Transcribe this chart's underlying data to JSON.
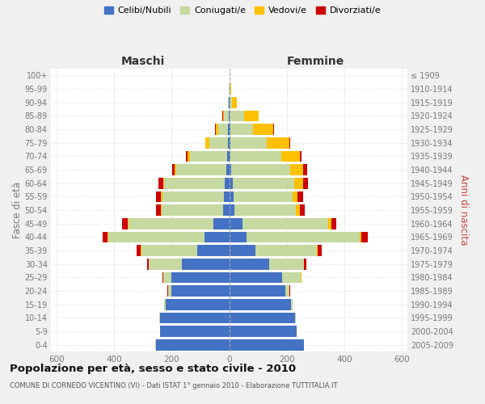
{
  "age_groups": [
    "0-4",
    "5-9",
    "10-14",
    "15-19",
    "20-24",
    "25-29",
    "30-34",
    "35-39",
    "40-44",
    "45-49",
    "50-54",
    "55-59",
    "60-64",
    "65-69",
    "70-74",
    "75-79",
    "80-84",
    "85-89",
    "90-94",
    "95-99",
    "100+"
  ],
  "birth_years": [
    "2005-2009",
    "2000-2004",
    "1995-1999",
    "1990-1994",
    "1985-1989",
    "1980-1984",
    "1975-1979",
    "1970-1974",
    "1965-1969",
    "1960-1964",
    "1955-1959",
    "1950-1954",
    "1945-1949",
    "1940-1944",
    "1935-1939",
    "1930-1934",
    "1925-1929",
    "1920-1924",
    "1915-1919",
    "1910-1914",
    "≤ 1909"
  ],
  "male": {
    "celibe": [
      255,
      240,
      240,
      220,
      200,
      200,
      165,
      110,
      85,
      55,
      20,
      18,
      15,
      10,
      7,
      5,
      3,
      2,
      1,
      0,
      0
    ],
    "coniugato": [
      1,
      1,
      2,
      5,
      12,
      28,
      115,
      195,
      335,
      295,
      215,
      215,
      210,
      175,
      130,
      65,
      35,
      15,
      3,
      1,
      0
    ],
    "vedovo": [
      0,
      0,
      0,
      0,
      1,
      2,
      1,
      2,
      3,
      4,
      4,
      4,
      5,
      6,
      8,
      12,
      8,
      5,
      1,
      0,
      0
    ],
    "divorziato": [
      0,
      0,
      0,
      0,
      1,
      2,
      5,
      14,
      18,
      18,
      15,
      18,
      15,
      8,
      5,
      1,
      2,
      1,
      0,
      0,
      0
    ]
  },
  "female": {
    "nubile": [
      260,
      235,
      230,
      215,
      195,
      185,
      140,
      90,
      60,
      45,
      18,
      15,
      12,
      8,
      5,
      5,
      3,
      2,
      1,
      0,
      0
    ],
    "coniugata": [
      1,
      1,
      2,
      5,
      15,
      65,
      120,
      215,
      395,
      300,
      215,
      205,
      215,
      205,
      175,
      125,
      80,
      50,
      10,
      3,
      1
    ],
    "vedova": [
      0,
      0,
      0,
      0,
      0,
      1,
      1,
      3,
      5,
      10,
      12,
      18,
      30,
      45,
      65,
      80,
      70,
      50,
      15,
      3,
      1
    ],
    "divorziata": [
      0,
      0,
      0,
      0,
      1,
      2,
      8,
      15,
      22,
      18,
      18,
      18,
      18,
      12,
      8,
      3,
      3,
      2,
      0,
      0,
      0
    ]
  },
  "colors": {
    "celibe": "#4472c4",
    "coniugato": "#c5d9a0",
    "vedovo": "#ffc000",
    "divorziato": "#cc0000"
  },
  "legend_labels": [
    "Celibi/Nubili",
    "Coniugati/e",
    "Vedovi/e",
    "Divorziati/e"
  ],
  "title": "Popolazione per età, sesso e stato civile - 2010",
  "subtitle": "COMUNE DI CORNEDO VICENTINO (VI) - Dati ISTAT 1° gennaio 2010 - Elaborazione TUTTITALIA.IT",
  "ylabel_left": "Fasce di età",
  "ylabel_right": "Anni di nascita",
  "xlabel_left": "Maschi",
  "xlabel_right": "Femmine",
  "xlim": 620,
  "background_color": "#f0f0f0",
  "bar_bg_color": "#ffffff",
  "grid_color": "#cccccc",
  "tick_color": "#777777"
}
